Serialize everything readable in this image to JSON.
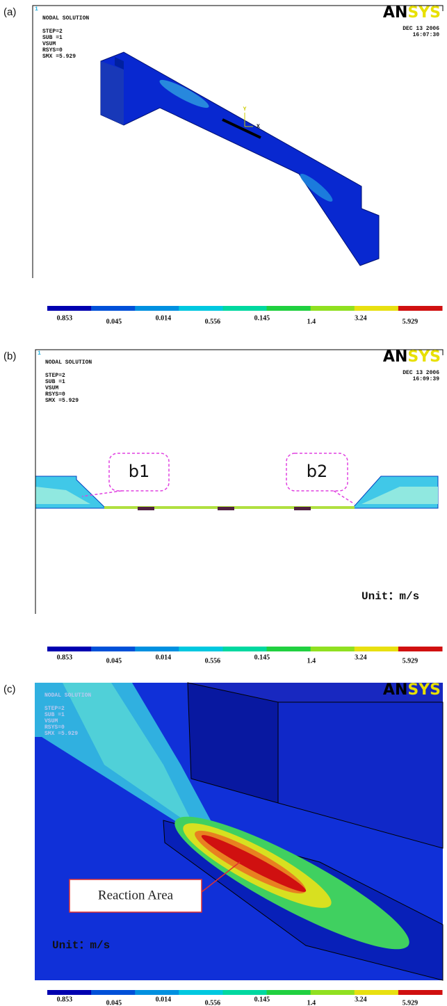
{
  "panels": [
    {
      "label": "(a)",
      "window_number": "1",
      "header": [
        "NODAL SOLUTION",
        "STEP=2",
        "SUB =1",
        "VSUM",
        "RSYS=0",
        "SMX =5.929"
      ],
      "logo": {
        "dark": "AN",
        "light": "SYS"
      },
      "date": "DEC 13 2006",
      "time": "16:07:30",
      "axes": [
        "Y",
        "X"
      ],
      "legend": [
        "0.853",
        "0.045",
        "0.014",
        "0.556",
        "0.145",
        "1.4",
        "3.24",
        "5.929"
      ]
    },
    {
      "label": "(b)",
      "window_number": "1",
      "header": [
        "NODAL SOLUTION",
        "STEP=2",
        "SUB =1",
        "VSUM",
        "RSYS=0",
        "SMX =5.929"
      ],
      "logo": {
        "dark": "AN",
        "light": "SYS"
      },
      "date": "DEC 13 2006",
      "time": "16:09:39",
      "callouts": [
        "b1",
        "b2"
      ],
      "unit": "Unit：m/s",
      "legend": [
        "0.853",
        "0.045",
        "0.014",
        "0.556",
        "0.145",
        "1.4",
        "3.24",
        "5.929"
      ]
    },
    {
      "label": "(c)",
      "header": [
        "NODAL SOLUTION",
        "STEP=2",
        "SUB =1",
        "VSUM",
        "RSYS=0",
        "SMX =5.929"
      ],
      "logo": {
        "dark": "AN",
        "light": "SYS"
      },
      "annotation": "Reaction Area",
      "unit": "Unit：m/s",
      "legend": [
        "0.853",
        "0.045",
        "0.014",
        "0.556",
        "0.145",
        "1.4",
        "3.24",
        "5.929"
      ]
    }
  ]
}
